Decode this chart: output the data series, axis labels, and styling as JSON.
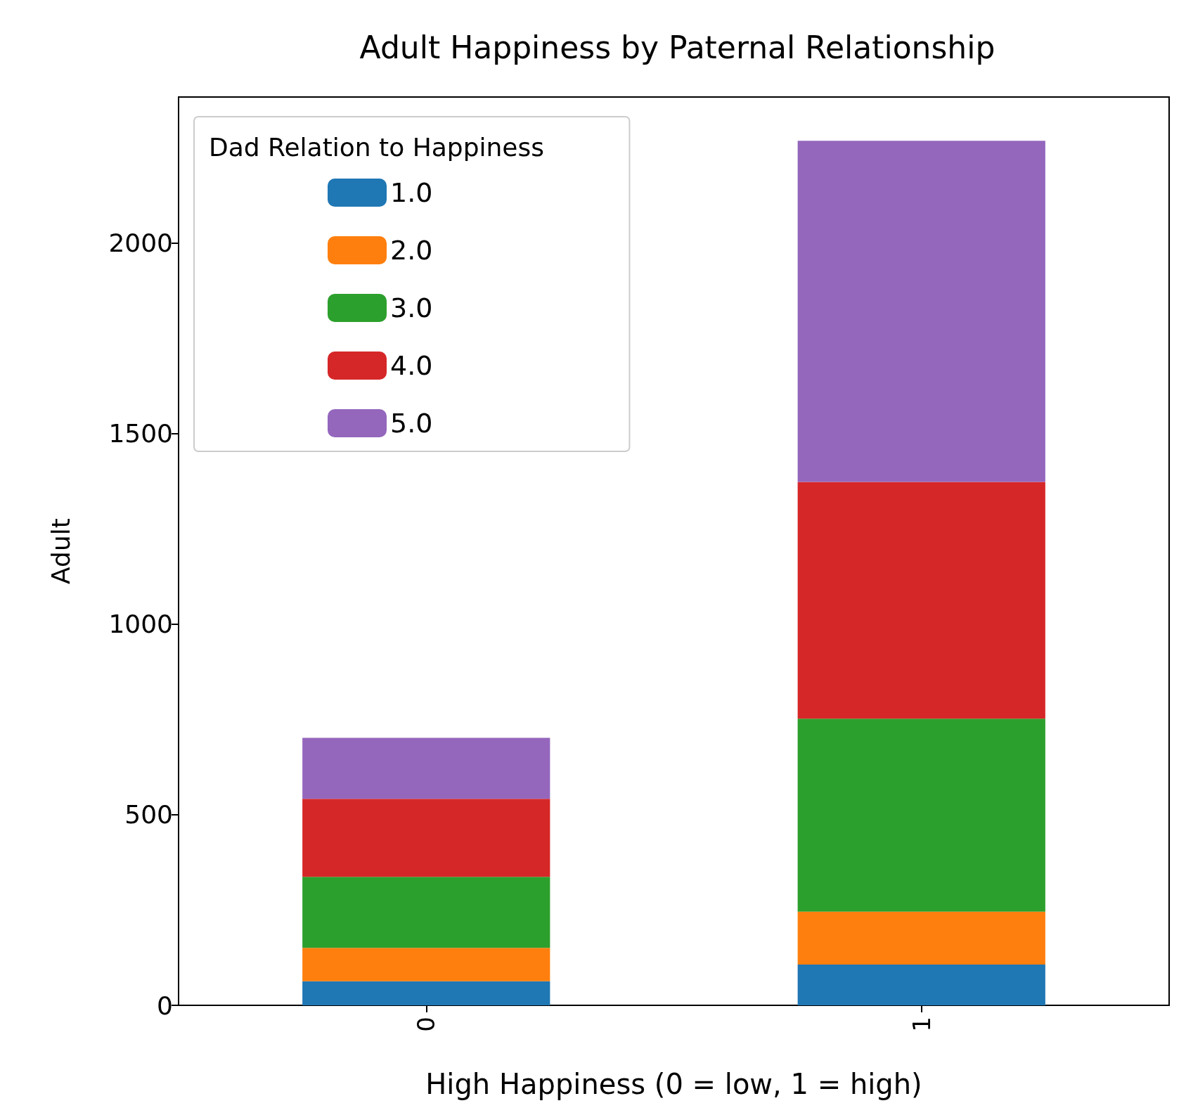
{
  "chart_data": {
    "type": "bar",
    "title": "Adult Happiness by Paternal Relationship",
    "xlabel": "High Happiness (0 = low, 1 = high)",
    "ylabel": "Adult",
    "legend_title": "Dad Relation to Happiness",
    "categories": [
      "0",
      "1"
    ],
    "stacked": true,
    "legend": "top left",
    "grid": false,
    "series": [
      {
        "name": "1.0",
        "color": "#1f77b4",
        "values": [
          63,
          107
        ]
      },
      {
        "name": "2.0",
        "color": "#ff7f0e",
        "values": [
          88,
          139
        ]
      },
      {
        "name": "3.0",
        "color": "#2ca02c",
        "values": [
          186,
          506
        ]
      },
      {
        "name": "4.0",
        "color": "#d62728",
        "values": [
          205,
          621
        ]
      },
      {
        "name": "5.0",
        "color": "#9467bd",
        "values": [
          160,
          895
        ]
      }
    ],
    "ylim": [
      0,
      2383
    ],
    "yticks": [
      0,
      500,
      1000,
      1500,
      2000
    ]
  }
}
